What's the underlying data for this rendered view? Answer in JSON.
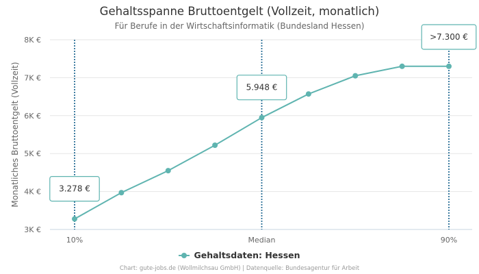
{
  "chart_data": {
    "type": "line",
    "title": "Gehaltsspanne Bruttoentgelt (Vollzeit, monatlich)",
    "subtitle": "Für Berufe in der Wirtschaftsinformatik (Bundesland Hessen)",
    "ylabel": "Monatliches Bruttoentgelt (Vollzeit)",
    "ylim": [
      3000,
      8000
    ],
    "yticks": [
      {
        "value": 3000,
        "label": "3K €"
      },
      {
        "value": 4000,
        "label": "4K €"
      },
      {
        "value": 5000,
        "label": "5K €"
      },
      {
        "value": 6000,
        "label": "6K €"
      },
      {
        "value": 7000,
        "label": "7K €"
      },
      {
        "value": 8000,
        "label": "8K €"
      }
    ],
    "x_categories": [
      "10%",
      "",
      "",
      "",
      "Median",
      "",
      "",
      "",
      "90%"
    ],
    "series": [
      {
        "name": "Gehaltsdaten: Hessen",
        "color": "#5fb4b0",
        "values": [
          3278,
          3970,
          4550,
          5220,
          5948,
          6570,
          7050,
          7300,
          7300
        ]
      }
    ],
    "markers": [
      {
        "index": 0,
        "label": "3.278 €",
        "line_color": "#2a6f97"
      },
      {
        "index": 4,
        "label": "5.948 €",
        "line_color": "#2a6f97"
      },
      {
        "index": 8,
        "label": ">7.300 €",
        "line_color": "#2a6f97"
      }
    ],
    "legend": "bottom-center",
    "grid": true
  },
  "credits": "Chart: gute-jobs.de (Wollmilchsau GmbH) | Datenquelle: Bundesagentur für Arbeit"
}
